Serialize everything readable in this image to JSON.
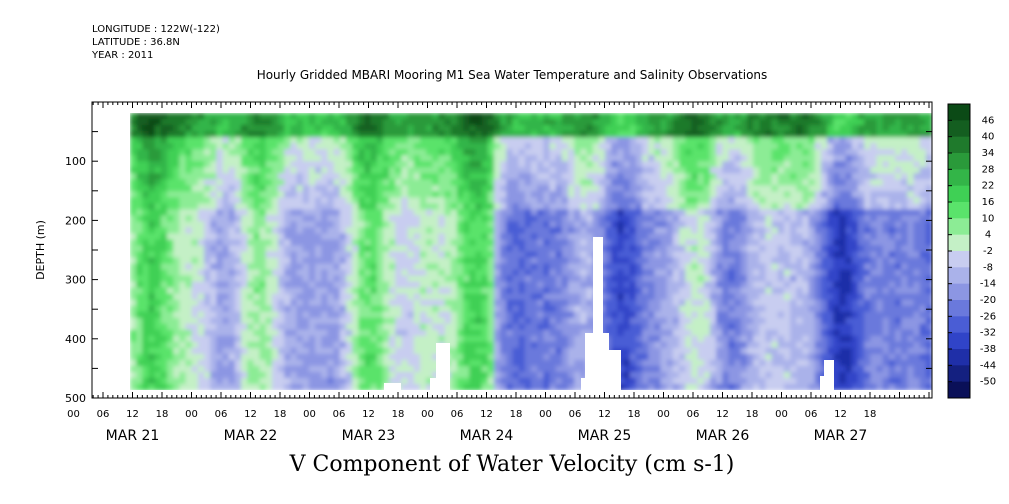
{
  "header": {
    "longitude": "LONGITUDE : 122W(-122)",
    "latitude": "LATITUDE : 36.8N",
    "year": "YEAR : 2011"
  },
  "chart_data": {
    "type": "heatmap",
    "title": "Hourly Gridded MBARI Mooring M1 Sea Water Temperature and Salinity Observations",
    "xlabel": "V Component of Water Velocity (cm s-1)",
    "ylabel": "DEPTH (m)",
    "x_hour_ticks": [
      "00",
      "06",
      "12",
      "18",
      "00",
      "06",
      "12",
      "18",
      "00",
      "06",
      "12",
      "18",
      "00",
      "06",
      "12",
      "18",
      "00",
      "06",
      "12",
      "18",
      "00",
      "06",
      "12",
      "18",
      "00",
      "06",
      "12",
      "18"
    ],
    "x_day_labels": [
      "MAR 21",
      "MAR 22",
      "MAR 23",
      "MAR 24",
      "MAR 25",
      "MAR 26",
      "MAR 27"
    ],
    "y_ticks": [
      100,
      200,
      300,
      400,
      500
    ],
    "ylim": [
      500,
      0
    ],
    "colorbar": {
      "labels": [
        46,
        40,
        34,
        28,
        22,
        16,
        10,
        4,
        -2,
        -8,
        -14,
        -20,
        -26,
        -32,
        -38,
        -44,
        -50
      ],
      "colors_top_to_bottom": [
        "#0b4a16",
        "#145e20",
        "#1f7a2c",
        "#2a9a3a",
        "#33b548",
        "#3fd055",
        "#5ae36b",
        "#8cec95",
        "#c4f0c6",
        "#c8cdf0",
        "#aab2ea",
        "#8c96e3",
        "#6a79dc",
        "#4a5dd5",
        "#3044c8",
        "#1f2fa8",
        "#142080",
        "#0a1058"
      ]
    },
    "field_description_by_depth": [
      {
        "depth_range": [
          20,
          60
        ],
        "dominant_values": [
          16,
          46
        ]
      },
      {
        "depth_range": [
          60,
          180
        ],
        "dominant_values": [
          -8,
          28
        ]
      },
      {
        "depth_range": [
          180,
          480
        ],
        "dominant_values": [
          -26,
          16
        ]
      }
    ]
  }
}
